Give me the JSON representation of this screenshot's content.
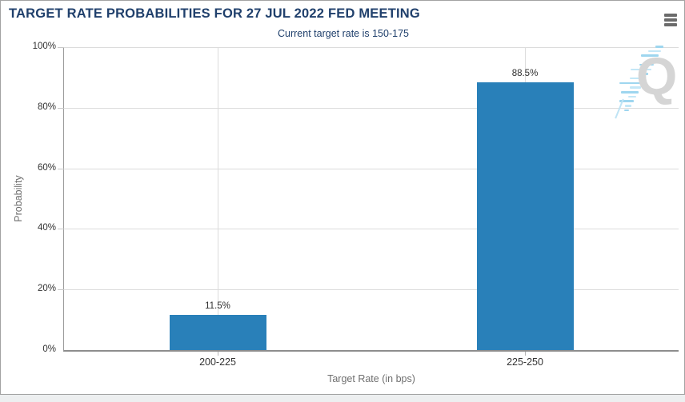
{
  "header": {
    "title": "TARGET RATE PROBABILITIES FOR 27 JUL 2022 FED MEETING",
    "subtitle": "Current target rate is 150-175",
    "menu_icon": "hamburger-menu-icon"
  },
  "chart_data": {
    "type": "bar",
    "title": "TARGET RATE PROBABILITIES FOR 27 JUL 2022 FED MEETING",
    "subtitle": "Current target rate is 150-175",
    "categories": [
      "200-225",
      "225-250"
    ],
    "values": [
      11.5,
      88.5
    ],
    "value_labels": [
      "11.5%",
      "88.5%"
    ],
    "xlabel": "Target Rate (in bps)",
    "ylabel": "Probability",
    "ylim": [
      0,
      100
    ],
    "ytick_values": [
      0,
      20,
      40,
      60,
      80,
      100
    ],
    "ytick_labels": [
      "0%",
      "20%",
      "40%",
      "60%",
      "80%",
      "100%"
    ],
    "grid": true,
    "legend": "none",
    "bar_color": "#2980b9"
  },
  "watermark": {
    "letter": "Q",
    "q_color": "#d5d5d5",
    "swoosh_color": "#9ed6ef"
  }
}
